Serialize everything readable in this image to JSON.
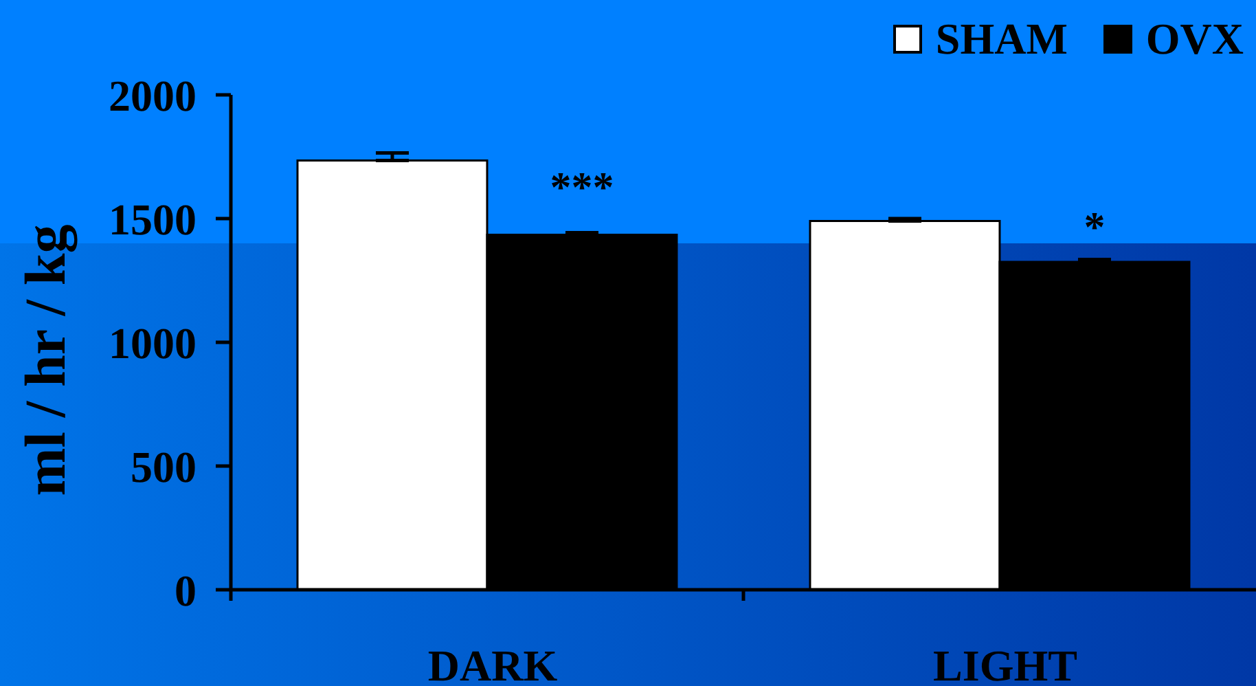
{
  "chart_data": {
    "type": "bar",
    "categories": [
      "DARK",
      "LIGHT"
    ],
    "series": [
      {
        "name": "SHAM",
        "color": "#ffffff",
        "values": [
          1735,
          1490
        ],
        "errors": [
          30,
          10
        ]
      },
      {
        "name": "OVX",
        "color": "#000000",
        "values": [
          1435,
          1325
        ],
        "errors": [
          8,
          10
        ]
      }
    ],
    "ylabel": "ml / hr / kg",
    "ylim": [
      0,
      2000
    ],
    "yticks": [
      0,
      500,
      1000,
      1500,
      2000
    ],
    "annotations": [
      {
        "text": "***",
        "x": "DARK",
        "y": 1650
      },
      {
        "text": "*",
        "x": "LIGHT",
        "y": 1490
      }
    ],
    "legend": "top right"
  }
}
